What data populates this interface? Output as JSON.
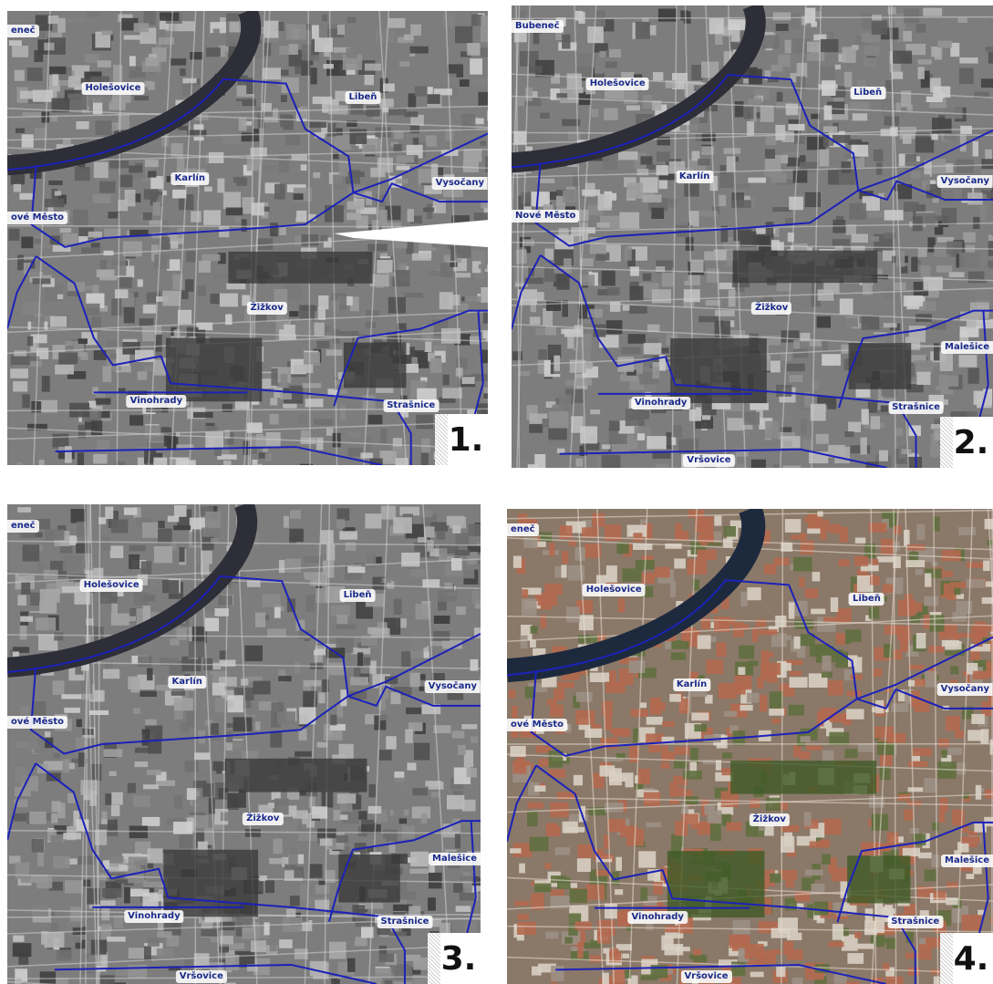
{
  "panels": [
    {
      "number": "1.",
      "palette": "gray",
      "labels": {
        "bubenec": "eneč",
        "holesovice": "Holešovice",
        "liben": "Libeň",
        "karlin": "Karlín",
        "vysocany": "Vysočany",
        "nove_mesto": "ové Město",
        "zizkov": "Žižkov",
        "malesice": "",
        "vinohrady": "Vinohrady",
        "strasnice": "Strašnice",
        "vrsovice": ""
      }
    },
    {
      "number": "2.",
      "palette": "gray",
      "labels": {
        "bubenec": "Bubeneč",
        "holesovice": "Holešovice",
        "liben": "Libeň",
        "karlin": "Karlín",
        "vysocany": "Vysočany",
        "nove_mesto": "Nové Město",
        "zizkov": "Žižkov",
        "malesice": "Malešice",
        "vinohrady": "Vinohrady",
        "strasnice": "Strašnice",
        "vrsovice": "Vršovice"
      }
    },
    {
      "number": "3.",
      "palette": "gray",
      "labels": {
        "bubenec": "eneč",
        "holesovice": "Holešovice",
        "liben": "Libeň",
        "karlin": "Karlín",
        "vysocany": "Vysočany",
        "nove_mesto": "ové Město",
        "zizkov": "Žižkov",
        "malesice": "Malešice",
        "vinohrady": "Vinohrady",
        "strasnice": "Strašnice",
        "vrsovice": "Vršovice"
      }
    },
    {
      "number": "4.",
      "palette": "color",
      "labels": {
        "bubenec": "eneč",
        "holesovice": "Holešovice",
        "liben": "Libeň",
        "karlin": "Karlín",
        "vysocany": "Vysočany",
        "nove_mesto": "ové Město",
        "zizkov": "Žižkov",
        "malesice": "Malešice",
        "vinohrady": "Vinohrady",
        "strasnice": "Strašnice",
        "vrsovice": "Vršovice"
      }
    }
  ],
  "colors": {
    "boundary": "#1c22b8",
    "label_text": "#1a2a8a",
    "river_gray": "#2e2e38",
    "river_color": "#1d2a3e"
  }
}
